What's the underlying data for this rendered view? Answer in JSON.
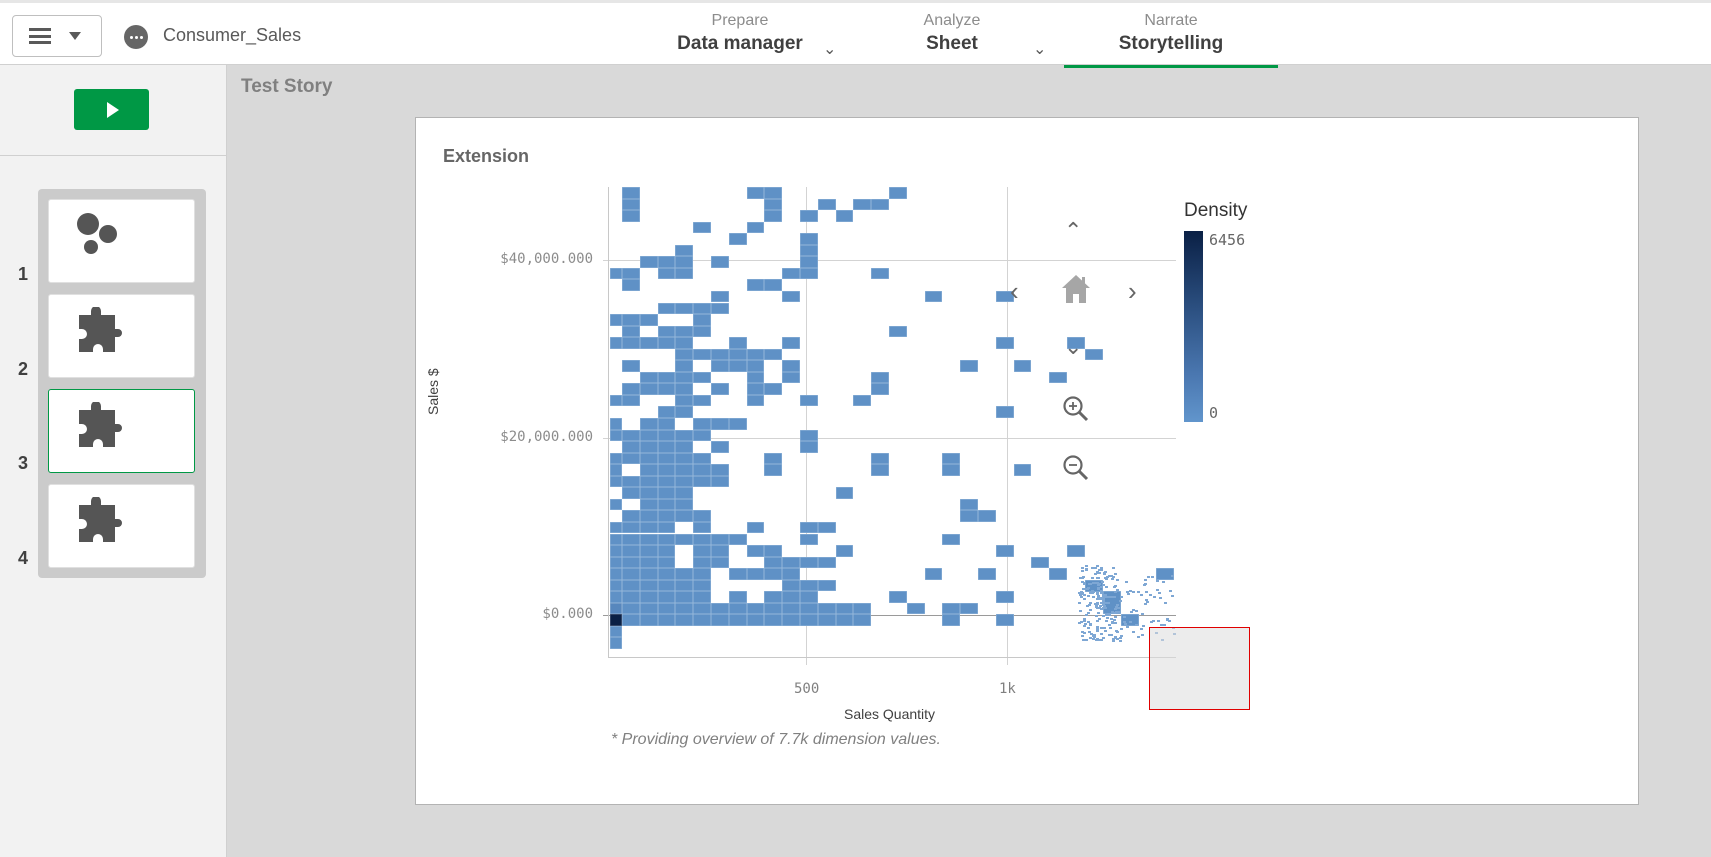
{
  "topbar": {
    "app_name": "Consumer_Sales",
    "tabs": [
      {
        "sub": "Prepare",
        "main": "Data manager",
        "has_dropdown": true,
        "active": false
      },
      {
        "sub": "Analyze",
        "main": "Sheet",
        "has_dropdown": true,
        "active": false
      },
      {
        "sub": "Narrate",
        "main": "Storytelling",
        "has_dropdown": false,
        "active": true
      }
    ],
    "accent_color": "#009845"
  },
  "sidebar": {
    "play_button_color": "#009845",
    "slides": [
      {
        "number": "1",
        "icon": "scatter-icon",
        "active": false
      },
      {
        "number": "2",
        "icon": "extension-puzzle-icon",
        "active": false
      },
      {
        "number": "3",
        "icon": "extension-puzzle-icon",
        "active": true
      },
      {
        "number": "4",
        "icon": "extension-puzzle-icon",
        "active": false
      }
    ]
  },
  "story": {
    "title": "Test Story"
  },
  "chart": {
    "title": "Extension",
    "footnote": "* Providing overview of 7.7k dimension values.",
    "legend": {
      "title": "Density",
      "max": "6456",
      "min": "0"
    }
  },
  "chart_data": {
    "type": "heatmap",
    "title": "Extension",
    "xlabel": "Sales Quantity",
    "ylabel": "Sales $",
    "x_ticks": [
      "500",
      "1k"
    ],
    "y_ticks": [
      "$40,000.000",
      "$20,000.000",
      "$0.000"
    ],
    "legend": {
      "title": "Density",
      "range": [
        0,
        6456
      ],
      "color_low": "#6195cc",
      "color_high": "#0a2045"
    },
    "grid": true,
    "cell_color": "#5f91c6",
    "densest_cell": {
      "row": 37,
      "col": -1,
      "color": "#0a2045"
    },
    "note": "Binned density heatmap; rows indexed from top (row 0 ≈ $48M) to bottom (row 39 ≈ -$3M), cols indexed by Sales Quantity bin (col -1 = narrow first bin near 0, col 10 ≈ 500, col 21 ≈ 1k)",
    "rows": {
      "0": [
        0,
        7,
        8,
        15
      ],
      "1": [
        0,
        8,
        11,
        13,
        14
      ],
      "2": [
        0,
        8,
        10,
        12
      ],
      "3": [
        4,
        7
      ],
      "4": [
        6,
        10
      ],
      "5": [
        3,
        10
      ],
      "6": [
        1,
        2,
        3,
        5,
        10
      ],
      "7": [
        -1,
        0,
        2,
        3,
        9,
        10,
        14
      ],
      "8": [
        0,
        7,
        8
      ],
      "9": [
        5,
        9,
        17,
        21
      ],
      "10": [
        2,
        3,
        4,
        5
      ],
      "11": [
        -1,
        0,
        1,
        4
      ],
      "12": [
        0,
        2,
        3,
        4,
        15
      ],
      "13": [
        -1,
        0,
        1,
        2,
        3,
        6,
        9,
        21,
        25
      ],
      "14": [
        3,
        4,
        5,
        6,
        7,
        8,
        26
      ],
      "15": [
        0,
        3,
        5,
        6,
        7,
        9,
        19,
        22
      ],
      "16": [
        1,
        2,
        3,
        4,
        7,
        9,
        14,
        24
      ],
      "17": [
        0,
        1,
        2,
        3,
        5,
        7,
        8,
        14
      ],
      "18": [
        -1,
        0,
        3,
        4,
        7,
        10,
        13
      ],
      "19": [
        2,
        3,
        21
      ],
      "20": [
        -1,
        1,
        2,
        4,
        5,
        6
      ],
      "21": [
        -1,
        0,
        1,
        2,
        3,
        4,
        10
      ],
      "22": [
        0,
        1,
        2,
        3,
        5,
        10
      ],
      "23": [
        -1,
        0,
        1,
        2,
        3,
        4,
        8,
        14,
        18
      ],
      "24": [
        -1,
        1,
        2,
        3,
        4,
        5,
        8,
        14,
        18,
        22
      ],
      "25": [
        -1,
        0,
        1,
        2,
        3,
        4,
        5
      ],
      "26": [
        0,
        1,
        2,
        3,
        12
      ],
      "27": [
        -1,
        1,
        2,
        3,
        19
      ],
      "28": [
        0,
        1,
        2,
        3,
        4,
        19,
        20
      ],
      "29": [
        -1,
        0,
        1,
        2,
        4,
        7,
        10,
        11
      ],
      "30": [
        -1,
        0,
        1,
        2,
        3,
        4,
        5,
        6,
        10,
        18
      ],
      "31": [
        -1,
        0,
        1,
        2,
        4,
        5,
        7,
        8,
        12,
        21,
        25
      ],
      "32": [
        -1,
        0,
        1,
        2,
        4,
        5,
        8,
        9,
        10,
        11,
        23
      ],
      "33": [
        -1,
        0,
        1,
        2,
        3,
        4,
        6,
        7,
        8,
        9,
        17,
        20,
        24,
        30
      ],
      "34": [
        -1,
        0,
        1,
        2,
        3,
        4,
        9,
        10,
        11
      ],
      "35": [
        -1,
        0,
        1,
        2,
        3,
        4,
        6,
        8,
        9,
        10,
        15,
        21
      ],
      "36": [
        -1,
        0,
        1,
        2,
        3,
        4,
        5,
        6,
        7,
        8,
        9,
        10,
        11,
        12,
        13,
        16,
        18,
        19
      ],
      "37": [
        -1,
        0,
        1,
        2,
        3,
        4,
        5,
        6,
        7,
        8,
        9,
        10,
        11,
        12,
        13,
        18,
        21
      ],
      "38": [
        -1
      ],
      "39": [
        -1
      ]
    }
  },
  "nav_controls": [
    "pan-up",
    "pan-left",
    "home",
    "pan-right",
    "pan-down",
    "zoom-in",
    "zoom-out"
  ]
}
